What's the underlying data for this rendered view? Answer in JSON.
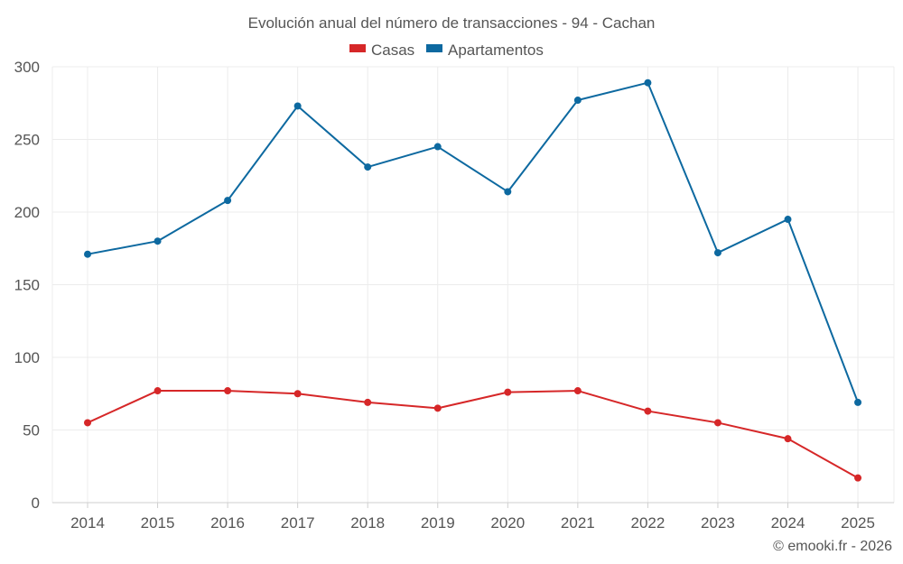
{
  "chart_data": {
    "type": "line",
    "title": "Evolución anual del número de transacciones - 94 - Cachan",
    "categories": [
      "2014",
      "2015",
      "2016",
      "2017",
      "2018",
      "2019",
      "2020",
      "2021",
      "2022",
      "2023",
      "2024",
      "2025"
    ],
    "series": [
      {
        "name": "Casas",
        "color": "#d62728",
        "values": [
          55,
          77,
          77,
          75,
          69,
          65,
          76,
          77,
          63,
          55,
          44,
          17
        ]
      },
      {
        "name": "Apartamentos",
        "color": "#0d69a0",
        "values": [
          171,
          180,
          208,
          273,
          231,
          245,
          214,
          277,
          289,
          172,
          195,
          69
        ]
      }
    ],
    "y_ticks": [
      "0",
      "50",
      "100",
      "150",
      "200",
      "250",
      "300"
    ],
    "ylim": [
      0,
      300
    ],
    "xlabel": "",
    "ylabel": "",
    "grid": true,
    "legend": "top-center"
  },
  "credit": "© emooki.fr - 2026"
}
